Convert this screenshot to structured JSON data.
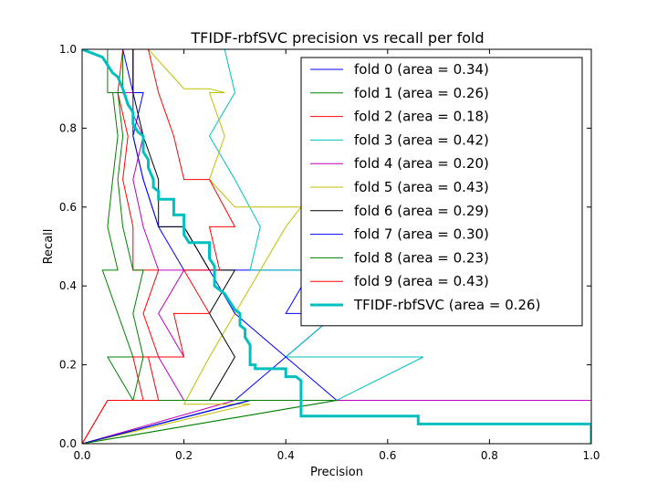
{
  "chart_data": {
    "type": "line",
    "title": "TFIDF-rbfSVC precision vs recall per fold",
    "xlabel": "Precision",
    "ylabel": "Recall",
    "xlim": [
      0,
      1
    ],
    "ylim": [
      0,
      1
    ],
    "xticks": [
      "0.0",
      "0.2",
      "0.4",
      "0.6",
      "0.8",
      "1.0"
    ],
    "yticks": [
      "0.0",
      "0.2",
      "0.4",
      "0.6",
      "0.8",
      "1.0"
    ],
    "legend_position": "top-right",
    "grid": false,
    "series": [
      {
        "name": "fold 0 (area = 0.34)",
        "color": "#0000ff",
        "points": [
          [
            0,
            0
          ],
          [
            0.33,
            0.11
          ],
          [
            0.5,
            0.11
          ],
          [
            0.4,
            0.22
          ],
          [
            0.5,
            0.33
          ],
          [
            0.4,
            0.33
          ],
          [
            0.45,
            0.44
          ],
          [
            0.4,
            0.44
          ],
          [
            0.25,
            0.44
          ],
          [
            0.2,
            0.55
          ],
          [
            0.15,
            0.55
          ],
          [
            0.12,
            0.67
          ],
          [
            0.1,
            0.78
          ],
          [
            0.1,
            0.89
          ],
          [
            0.1,
            1.0
          ],
          [
            0.07,
            1.0
          ]
        ]
      },
      {
        "name": "fold 1 (area = 0.26)",
        "color": "#008000",
        "points": [
          [
            0,
            0
          ],
          [
            0.5,
            0.11
          ],
          [
            1.0,
            0.11
          ],
          [
            0.1,
            0.11
          ],
          [
            0.05,
            0.22
          ],
          [
            0.1,
            0.22
          ],
          [
            0.07,
            0.33
          ],
          [
            0.04,
            0.44
          ],
          [
            0.07,
            0.44
          ],
          [
            0.05,
            0.55
          ],
          [
            0.06,
            0.67
          ],
          [
            0.07,
            0.78
          ],
          [
            0.06,
            0.89
          ],
          [
            0.08,
            0.89
          ],
          [
            0.08,
            1.0
          ],
          [
            0.09,
            1.0
          ]
        ]
      },
      {
        "name": "fold 2 (area = 0.18)",
        "color": "#ff0000",
        "points": [
          [
            0,
            0
          ],
          [
            0.05,
            0.11
          ],
          [
            0.12,
            0.11
          ],
          [
            0.1,
            0.22
          ],
          [
            0.15,
            0.22
          ],
          [
            0.12,
            0.33
          ],
          [
            0.15,
            0.44
          ],
          [
            0.1,
            0.44
          ],
          [
            0.1,
            0.55
          ],
          [
            0.08,
            0.67
          ],
          [
            0.09,
            0.78
          ],
          [
            0.07,
            0.89
          ],
          [
            0.08,
            1.0
          ],
          [
            0.06,
            1.0
          ]
        ]
      },
      {
        "name": "fold 3 (area = 0.42)",
        "color": "#00bfbf",
        "points": [
          [
            0,
            0
          ],
          [
            0.33,
            0.11
          ],
          [
            0.5,
            0.11
          ],
          [
            0.67,
            0.22
          ],
          [
            0.4,
            0.22
          ],
          [
            0.5,
            0.33
          ],
          [
            0.43,
            0.44
          ],
          [
            0.33,
            0.44
          ],
          [
            0.35,
            0.55
          ],
          [
            0.3,
            0.67
          ],
          [
            0.25,
            0.78
          ],
          [
            0.3,
            0.89
          ],
          [
            0.28,
            1.0
          ],
          [
            0.32,
            1.0
          ]
        ]
      },
      {
        "name": "fold 4 (area = 0.20)",
        "color": "#bf00bf",
        "points": [
          [
            0,
            0
          ],
          [
            0.3,
            0.11
          ],
          [
            1.0,
            0.11
          ],
          [
            0.2,
            0.11
          ],
          [
            0.15,
            0.22
          ],
          [
            0.2,
            0.22
          ],
          [
            0.15,
            0.33
          ],
          [
            0.2,
            0.44
          ],
          [
            0.15,
            0.44
          ],
          [
            0.12,
            0.55
          ],
          [
            0.1,
            0.67
          ],
          [
            0.12,
            0.78
          ],
          [
            0.08,
            0.89
          ],
          [
            0.1,
            0.89
          ],
          [
            0.1,
            1.0
          ],
          [
            0.08,
            1.0
          ]
        ]
      },
      {
        "name": "fold 5 (area = 0.43)",
        "color": "#bfbf00",
        "points": [
          [
            0,
            0
          ],
          [
            0.33,
            0.1
          ],
          [
            0.2,
            0.1
          ],
          [
            0.25,
            0.22
          ],
          [
            0.3,
            0.33
          ],
          [
            0.35,
            0.44
          ],
          [
            0.4,
            0.55
          ],
          [
            0.43,
            0.6
          ],
          [
            0.4,
            0.6
          ],
          [
            0.3,
            0.6
          ],
          [
            0.25,
            0.67
          ],
          [
            0.28,
            0.78
          ],
          [
            0.25,
            0.89
          ],
          [
            0.28,
            0.89
          ],
          [
            0.25,
            0.9
          ],
          [
            0.2,
            0.9
          ],
          [
            0.13,
            1.0
          ],
          [
            0.15,
            1.0
          ]
        ]
      },
      {
        "name": "fold 6 (area = 0.29)",
        "color": "#000000",
        "points": [
          [
            0,
            0
          ],
          [
            0.33,
            0.11
          ],
          [
            0.25,
            0.11
          ],
          [
            0.3,
            0.22
          ],
          [
            0.25,
            0.33
          ],
          [
            0.3,
            0.44
          ],
          [
            0.25,
            0.44
          ],
          [
            0.2,
            0.55
          ],
          [
            0.15,
            0.55
          ],
          [
            0.15,
            0.67
          ],
          [
            0.12,
            0.78
          ],
          [
            0.1,
            0.89
          ],
          [
            0.1,
            1.0
          ],
          [
            0.08,
            1.0
          ]
        ]
      },
      {
        "name": "fold 7 (area = 0.30)",
        "color": "#0000ff",
        "points": [
          [
            0,
            0
          ],
          [
            0.33,
            0.11
          ],
          [
            0.3,
            0.11
          ],
          [
            0.4,
            0.22
          ],
          [
            0.3,
            0.33
          ],
          [
            0.25,
            0.44
          ],
          [
            0.2,
            0.44
          ],
          [
            0.15,
            0.55
          ],
          [
            0.12,
            0.67
          ],
          [
            0.1,
            0.78
          ],
          [
            0.12,
            0.89
          ],
          [
            0.1,
            0.89
          ],
          [
            0.08,
            1.0
          ]
        ]
      },
      {
        "name": "fold 8 (area = 0.23)",
        "color": "#008000",
        "points": [
          [
            0,
            0
          ],
          [
            0.5,
            0.11
          ],
          [
            0.1,
            0.11
          ],
          [
            0.12,
            0.22
          ],
          [
            0.1,
            0.33
          ],
          [
            0.12,
            0.44
          ],
          [
            0.1,
            0.44
          ],
          [
            0.08,
            0.55
          ],
          [
            0.07,
            0.67
          ],
          [
            0.08,
            0.78
          ],
          [
            0.07,
            0.89
          ],
          [
            0.05,
            0.89
          ],
          [
            0.05,
            1.0
          ]
        ]
      },
      {
        "name": "fold 9 (area = 0.43)",
        "color": "#ff0000",
        "points": [
          [
            0,
            0
          ],
          [
            0.05,
            0.11
          ],
          [
            0.15,
            0.11
          ],
          [
            0.13,
            0.22
          ],
          [
            0.2,
            0.22
          ],
          [
            0.18,
            0.33
          ],
          [
            0.25,
            0.33
          ],
          [
            0.2,
            0.44
          ],
          [
            0.27,
            0.44
          ],
          [
            0.25,
            0.55
          ],
          [
            0.3,
            0.55
          ],
          [
            0.25,
            0.67
          ],
          [
            0.2,
            0.67
          ],
          [
            0.18,
            0.78
          ],
          [
            0.15,
            0.89
          ],
          [
            0.13,
            1.0
          ],
          [
            0.1,
            1.0
          ]
        ]
      },
      {
        "name": "TFIDF-rbfSVC (area = 0.26)",
        "color": "#00bfbf",
        "bold": true,
        "points": [
          [
            0.0,
            1.0
          ],
          [
            0.04,
            0.98
          ],
          [
            0.05,
            0.96
          ],
          [
            0.06,
            0.94
          ],
          [
            0.07,
            0.93
          ],
          [
            0.08,
            0.9
          ],
          [
            0.09,
            0.86
          ],
          [
            0.1,
            0.84
          ],
          [
            0.1,
            0.81
          ],
          [
            0.11,
            0.79
          ],
          [
            0.12,
            0.78
          ],
          [
            0.12,
            0.74
          ],
          [
            0.13,
            0.72
          ],
          [
            0.13,
            0.7
          ],
          [
            0.14,
            0.67
          ],
          [
            0.14,
            0.65
          ],
          [
            0.15,
            0.64
          ],
          [
            0.15,
            0.62
          ],
          [
            0.18,
            0.62
          ],
          [
            0.18,
            0.58
          ],
          [
            0.2,
            0.58
          ],
          [
            0.2,
            0.55
          ],
          [
            0.2,
            0.53
          ],
          [
            0.21,
            0.51
          ],
          [
            0.25,
            0.51
          ],
          [
            0.25,
            0.5
          ],
          [
            0.25,
            0.47
          ],
          [
            0.26,
            0.45
          ],
          [
            0.26,
            0.43
          ],
          [
            0.26,
            0.4
          ],
          [
            0.28,
            0.38
          ],
          [
            0.29,
            0.36
          ],
          [
            0.3,
            0.34
          ],
          [
            0.31,
            0.33
          ],
          [
            0.31,
            0.3
          ],
          [
            0.32,
            0.29
          ],
          [
            0.32,
            0.27
          ],
          [
            0.33,
            0.25
          ],
          [
            0.33,
            0.23
          ],
          [
            0.33,
            0.2
          ],
          [
            0.34,
            0.2
          ],
          [
            0.34,
            0.19
          ],
          [
            0.4,
            0.19
          ],
          [
            0.4,
            0.17
          ],
          [
            0.42,
            0.17
          ],
          [
            0.43,
            0.16
          ],
          [
            0.43,
            0.1
          ],
          [
            0.43,
            0.07
          ],
          [
            0.66,
            0.07
          ],
          [
            0.66,
            0.05
          ],
          [
            1.0,
            0.05
          ],
          [
            1.0,
            0.0
          ]
        ]
      }
    ]
  }
}
